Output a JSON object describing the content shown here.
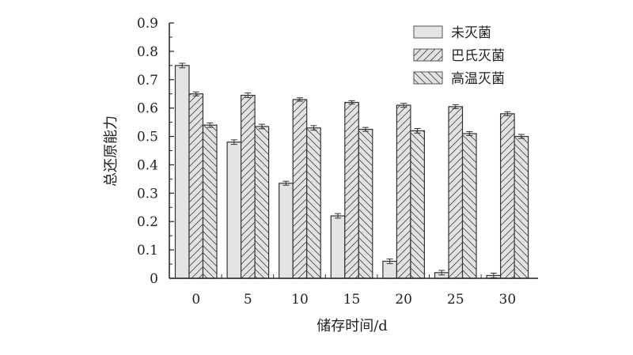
{
  "chart_data": {
    "type": "bar",
    "xlabel": "储存时间/d",
    "ylabel": "总还原能力",
    "categories": [
      "0",
      "5",
      "10",
      "15",
      "20",
      "25",
      "30"
    ],
    "ylim": [
      0,
      0.9
    ],
    "yticks": [
      "0",
      "0.1",
      "0.2",
      "0.3",
      "0.4",
      "0.5",
      "0.6",
      "0.7",
      "0.8",
      "0.9"
    ],
    "grid": false,
    "legend_position": "top-right",
    "error_bars": true,
    "series": [
      {
        "name": "未灭菌",
        "fill": "#e4e4e4",
        "pattern": "none",
        "values": [
          0.75,
          0.48,
          0.335,
          0.22,
          0.06,
          0.02,
          0.01
        ],
        "errors": [
          0.008,
          0.008,
          0.007,
          0.008,
          0.008,
          0.008,
          0.008
        ]
      },
      {
        "name": "巴氏灭菌",
        "fill": "#e4e4e4",
        "pattern": "forward-diagonal",
        "values": [
          0.65,
          0.645,
          0.63,
          0.62,
          0.61,
          0.605,
          0.58
        ],
        "errors": [
          0.007,
          0.008,
          0.006,
          0.006,
          0.007,
          0.007,
          0.007
        ]
      },
      {
        "name": "高温灭菌",
        "fill": "#e4e4e4",
        "pattern": "back-diagonal",
        "values": [
          0.54,
          0.535,
          0.53,
          0.525,
          0.52,
          0.51,
          0.5
        ],
        "errors": [
          0.008,
          0.008,
          0.008,
          0.007,
          0.008,
          0.007,
          0.007
        ]
      }
    ]
  }
}
